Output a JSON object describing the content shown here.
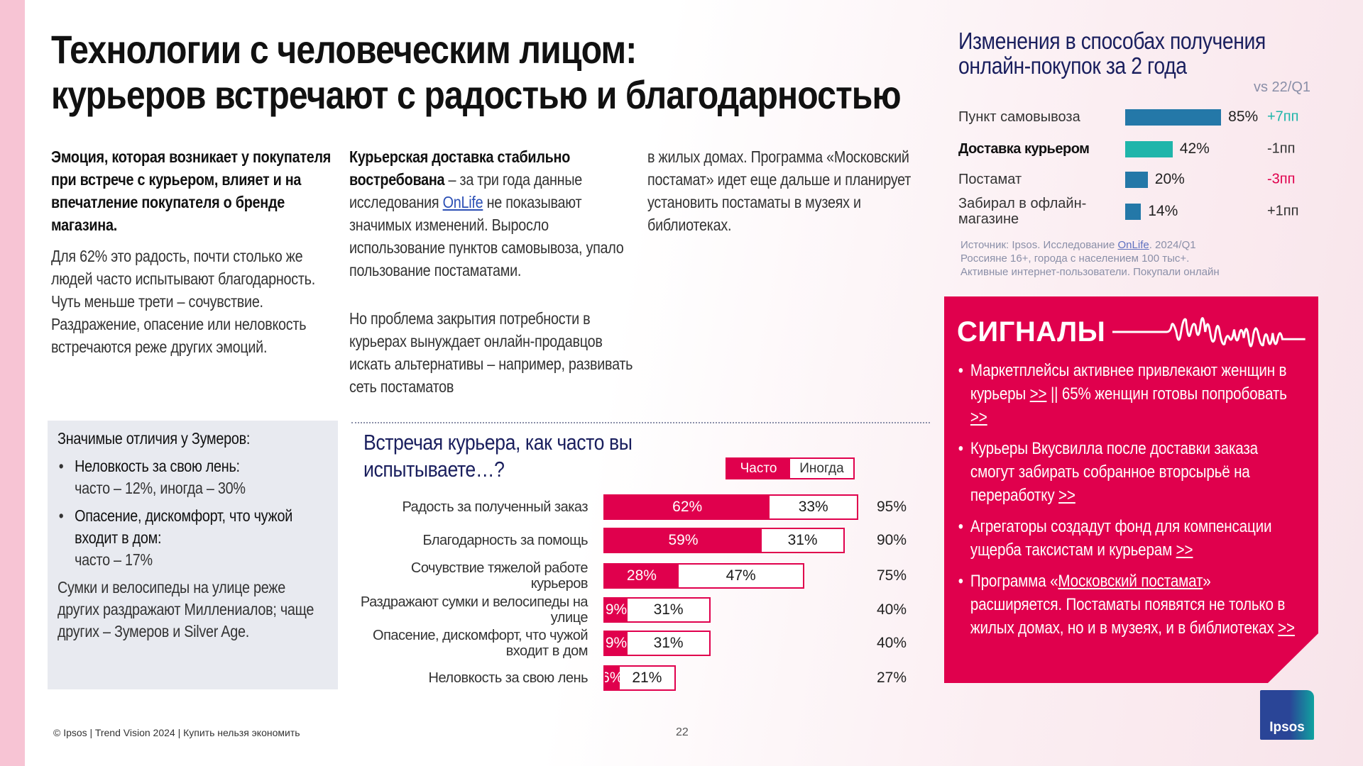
{
  "title": {
    "line1": "Технологии с человеческим лицом:",
    "line2": "курьеров встречают с радостью и благодарностью"
  },
  "col1": {
    "bold": "Эмоция, которая возникает у покупателя при встрече с курьером, влияет и на впечатление покупателя о бренде магазина.",
    "text": "Для 62% это радость, почти столько же людей часто испытывают благодарность. Чуть меньше трети – сочувствие. Раздражение, опасение или неловкость встречаются реже других эмоций."
  },
  "col2": {
    "bold": "Курьерская доставка стабильно востребована",
    "t1": " – за три года данные исследования ",
    "link": "OnLife",
    "t2": " не показывают значимых изменений. Выросло использование пунктов самовывоза, упало пользование постаматами.",
    "p2": "Но проблема закрытия потребности в курьерах вынуждает онлайн-продавцов искать альтернативы – например, развивать сеть постаматов"
  },
  "col3": {
    "text": "в жилых домах. Программа «Московский постамат» идет еще дальше и планирует установить постаматы в музеях и библиотеках."
  },
  "zoomers": {
    "heading": "Значимые отличия у Зумеров:",
    "items": [
      {
        "bold": "Неловкость за свою лень:",
        "detail": "часто – 12%, иногда – 30%"
      },
      {
        "bold": "Опасение, дискомфорт, что чужой входит в дом:",
        "detail": "часто – 17%"
      }
    ],
    "note": "Сумки и велосипеды на улице реже других раздражают Миллениалов; чаще других – Зумеров и Silver Age."
  },
  "chart_data": [
    {
      "type": "bar",
      "stacked": true,
      "title": "Встречая курьера, как часто вы испытываете…?",
      "legend": [
        "Часто",
        "Иногда"
      ],
      "legend_position": "top-right",
      "categories": [
        "Радость за полученный заказ",
        "Благодарность за помощь",
        "Сочувствие тяжелой работе курьеров",
        "Раздражают сумки и велосипеды на улице",
        "Опасение, дискомфорт, что чужой входит в дом",
        "Неловкость за свою лень"
      ],
      "series": [
        {
          "name": "Часто",
          "values": [
            62,
            59,
            28,
            9,
            9,
            6
          ],
          "color": "#e0004d"
        },
        {
          "name": "Иногда",
          "values": [
            33,
            31,
            47,
            31,
            31,
            21
          ],
          "color": "#ffffff"
        }
      ],
      "totals": [
        95,
        90,
        75,
        40,
        40,
        27
      ],
      "unit": "%"
    },
    {
      "type": "bar",
      "title": "Изменения в способах получения онлайн-покупок за 2 года",
      "comparison_label": "vs 22/Q1",
      "categories": [
        "Пункт самовывоза",
        "Доставка курьером",
        "Постамат",
        "Забирал в офлайн-магазине"
      ],
      "values": [
        85,
        42,
        20,
        14
      ],
      "changes": [
        "+7пп",
        "-1пп",
        "-3пп",
        "+1пп"
      ],
      "colors": [
        "#2478a8",
        "#1fb5aa",
        "#2478a8",
        "#2478a8"
      ],
      "change_colors": [
        "#1fb5aa",
        "#333333",
        "#e0004d",
        "#333333"
      ],
      "unit": "%"
    }
  ],
  "source": {
    "l1a": "Источник: Ipsos. Исследование ",
    "l1link": "OnLife",
    "l1b": ". 2024/Q1",
    "l2": "Россияне 16+, города с населением 100 тыс+.",
    "l3": "Активные интернет-пользователи. Покупали онлайн"
  },
  "signals": {
    "title": "СИГНАЛЫ",
    "link": ">>",
    "i1a": "Маркетплейсы активнее привлекают женщин в курьеры ",
    "i1b": " || 65% женщин готовы попробовать ",
    "i2": "Курьеры Вкусвилла после доставки заказа смогут забирать собранное вторсырьё на переработку ",
    "i3": "Агрегаторы создадут фонд для компенсации ущерба таксистам и курьерам ",
    "i4a": "Программа «",
    "i4link": "Московский постамат",
    "i4b": "» расширяется. Постаматы появятся не только в жилых домах, но и в музеях, и в библиотеках "
  },
  "logo": "Ipsos",
  "footer": "© Ipsos | Trend Vision 2024 | Купить нельзя экономить",
  "page": "22"
}
